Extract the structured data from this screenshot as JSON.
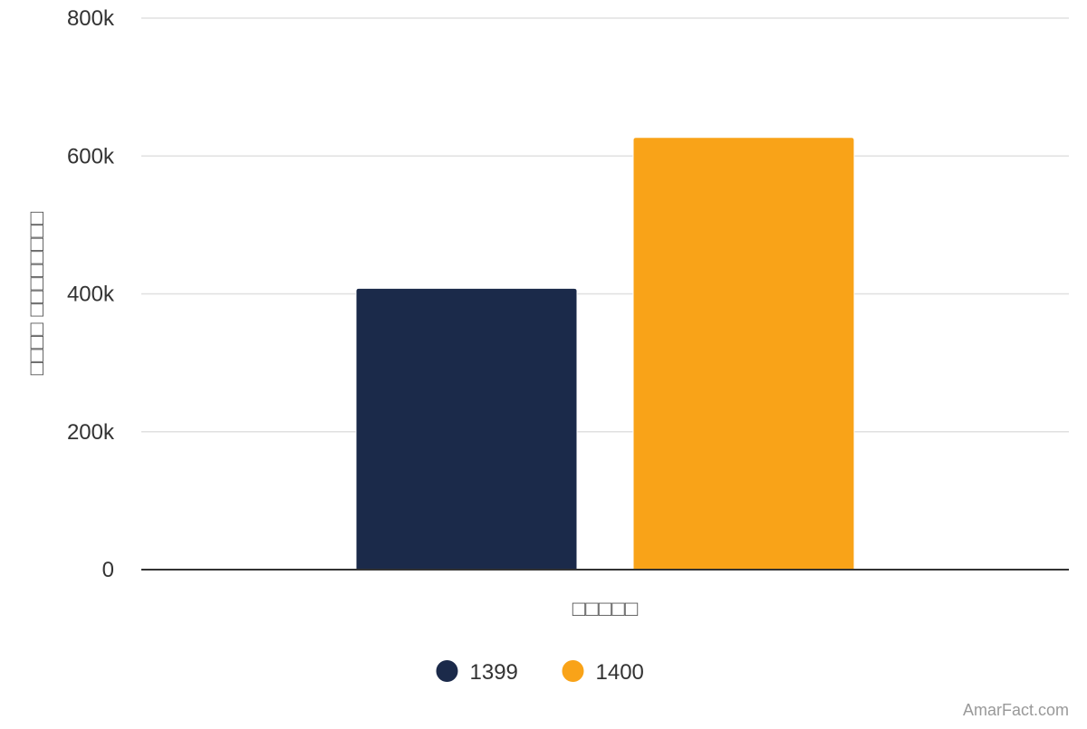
{
  "chart_data": {
    "type": "bar",
    "categories": [
      "□□□□□"
    ],
    "series": [
      {
        "name": "1399",
        "values": [
          408000
        ],
        "color": "#1b2a4a"
      },
      {
        "name": "1400",
        "values": [
          627000
        ],
        "color": "#f9a318"
      }
    ],
    "title": "",
    "xlabel": "□□□□□",
    "ylabel": "□□□□ □□□□□□□□",
    "ylim": [
      0,
      800000
    ],
    "yticks": [
      0,
      200000,
      400000,
      600000,
      800000
    ],
    "ytick_labels": [
      "0",
      "200k",
      "400k",
      "600k",
      "800k"
    ],
    "grid": true,
    "legend_position": "bottom-center"
  },
  "credit": "AmarFact.com"
}
